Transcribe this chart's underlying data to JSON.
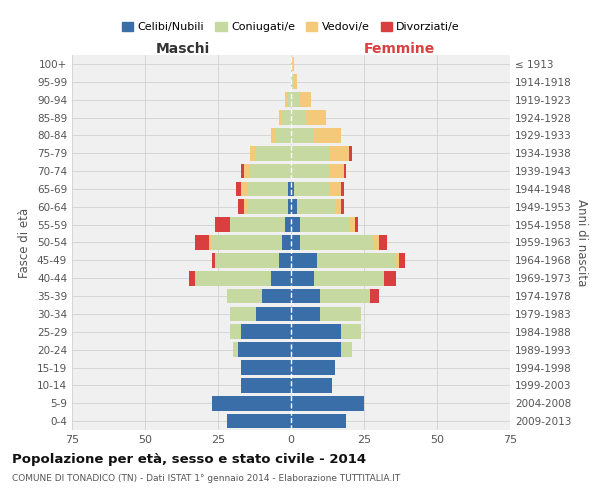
{
  "age_groups": [
    "0-4",
    "5-9",
    "10-14",
    "15-19",
    "20-24",
    "25-29",
    "30-34",
    "35-39",
    "40-44",
    "45-49",
    "50-54",
    "55-59",
    "60-64",
    "65-69",
    "70-74",
    "75-79",
    "80-84",
    "85-89",
    "90-94",
    "95-99",
    "100+"
  ],
  "birth_years": [
    "2009-2013",
    "2004-2008",
    "1999-2003",
    "1994-1998",
    "1989-1993",
    "1984-1988",
    "1979-1983",
    "1974-1978",
    "1969-1973",
    "1964-1968",
    "1959-1963",
    "1954-1958",
    "1949-1953",
    "1944-1948",
    "1939-1943",
    "1934-1938",
    "1929-1933",
    "1924-1928",
    "1919-1923",
    "1914-1918",
    "≤ 1913"
  ],
  "colors": {
    "celibi": "#3a6ea8",
    "coniugati": "#c5d9a0",
    "vedovi": "#f5c97a",
    "divorziati": "#d93f3f"
  },
  "maschi": {
    "celibi": [
      22,
      27,
      17,
      17,
      18,
      17,
      12,
      10,
      7,
      4,
      3,
      2,
      1,
      1,
      0,
      0,
      0,
      0,
      0,
      0,
      0
    ],
    "coniugati": [
      0,
      0,
      0,
      0,
      2,
      4,
      9,
      12,
      26,
      22,
      24,
      19,
      14,
      14,
      14,
      12,
      5,
      3,
      1,
      0,
      0
    ],
    "vedovi": [
      0,
      0,
      0,
      0,
      0,
      0,
      0,
      0,
      0,
      0,
      1,
      0,
      1,
      2,
      2,
      2,
      2,
      1,
      1,
      0,
      0
    ],
    "divorziati": [
      0,
      0,
      0,
      0,
      0,
      0,
      0,
      0,
      2,
      1,
      5,
      5,
      2,
      2,
      1,
      0,
      0,
      0,
      0,
      0,
      0
    ]
  },
  "femmine": {
    "celibi": [
      19,
      25,
      14,
      15,
      17,
      17,
      10,
      10,
      8,
      9,
      3,
      3,
      2,
      1,
      0,
      0,
      0,
      0,
      0,
      0,
      0
    ],
    "coniugati": [
      0,
      0,
      0,
      0,
      4,
      7,
      14,
      17,
      24,
      27,
      25,
      17,
      13,
      12,
      13,
      13,
      8,
      5,
      3,
      1,
      0
    ],
    "vedovi": [
      0,
      0,
      0,
      0,
      0,
      0,
      0,
      0,
      0,
      1,
      2,
      2,
      2,
      4,
      5,
      7,
      9,
      7,
      4,
      1,
      1
    ],
    "divorziati": [
      0,
      0,
      0,
      0,
      0,
      0,
      0,
      3,
      4,
      2,
      3,
      1,
      1,
      1,
      1,
      1,
      0,
      0,
      0,
      0,
      0
    ]
  },
  "xlim": 75,
  "title": "Popolazione per età, sesso e stato civile - 2014",
  "subtitle": "COMUNE DI TONADICO (TN) - Dati ISTAT 1° gennaio 2014 - Elaborazione TUTTITALIA.IT",
  "ylabel_left": "Fasce di età",
  "ylabel_right": "Anni di nascita",
  "xlabel_left": "Maschi",
  "xlabel_right": "Femmine",
  "legend_labels": [
    "Celibi/Nubili",
    "Coniugati/e",
    "Vedovi/e",
    "Divorziati/e"
  ],
  "bg_color": "#f0f0f0",
  "grid_color": "#cccccc"
}
